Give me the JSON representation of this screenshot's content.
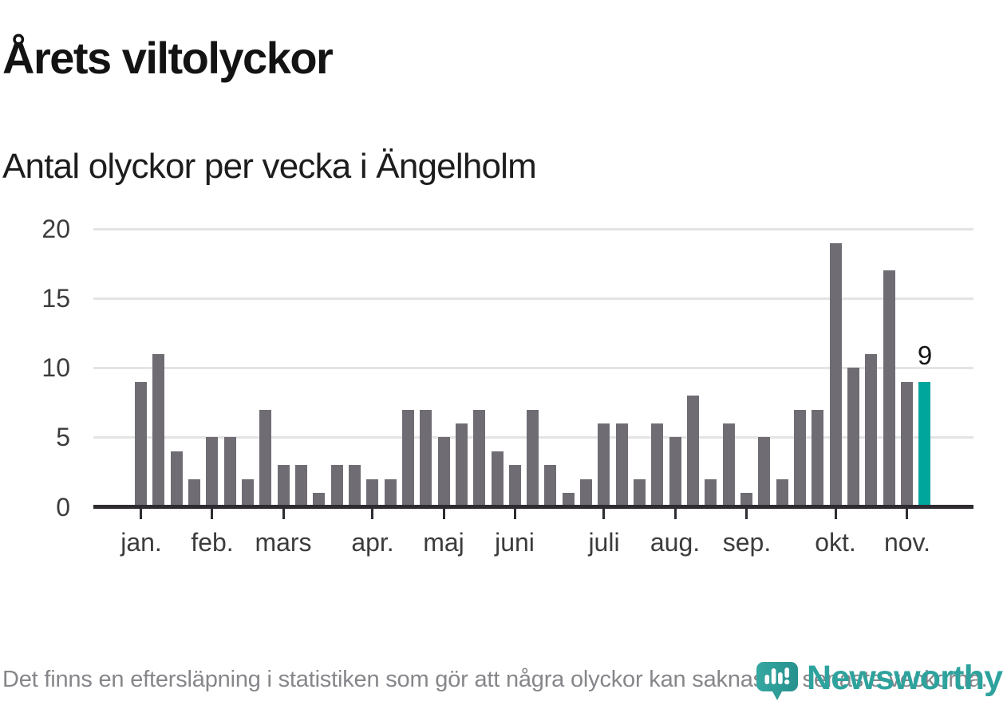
{
  "title": "Årets viltolyckor",
  "subtitle": "Antal olyckor per vecka i Ängelholm",
  "footnote": "Det finns en eftersläpning i statistiken som gör att några olyckor kan saknas de senaste veckorna.",
  "brand": {
    "name": "Newsworthy"
  },
  "colors": {
    "bar": "#706c74",
    "highlight": "#00a59c",
    "brand_teal": "#2ea39d",
    "grid": "#e4e4e4",
    "axis": "#2e2c31",
    "text_dark": "#131313",
    "text_muted": "#86868b"
  },
  "chart_data": {
    "type": "bar",
    "title": "Årets viltolyckor",
    "subtitle": "Antal olyckor per vecka i Ängelholm",
    "x_unit": "vecka",
    "ylim": [
      0,
      20
    ],
    "y_ticks": [
      0,
      5,
      10,
      15,
      20
    ],
    "grid": "horizontal",
    "values": [
      9,
      11,
      4,
      2,
      5,
      5,
      2,
      7,
      3,
      3,
      1,
      3,
      3,
      2,
      2,
      7,
      7,
      5,
      6,
      7,
      4,
      3,
      7,
      3,
      1,
      2,
      6,
      6,
      2,
      6,
      5,
      8,
      2,
      6,
      1,
      5,
      2,
      7,
      7,
      19,
      10,
      11,
      17,
      9,
      9
    ],
    "highlight_last": true,
    "last_value_label": "9",
    "month_ticks": [
      {
        "label": "jan.",
        "week_index": 0
      },
      {
        "label": "feb.",
        "week_index": 4
      },
      {
        "label": "mars",
        "week_index": 8
      },
      {
        "label": "apr.",
        "week_index": 13
      },
      {
        "label": "maj",
        "week_index": 17
      },
      {
        "label": "juni",
        "week_index": 21
      },
      {
        "label": "juli",
        "week_index": 26
      },
      {
        "label": "aug.",
        "week_index": 30
      },
      {
        "label": "sep.",
        "week_index": 34
      },
      {
        "label": "okt.",
        "week_index": 39
      },
      {
        "label": "nov.",
        "week_index": 43
      }
    ]
  }
}
